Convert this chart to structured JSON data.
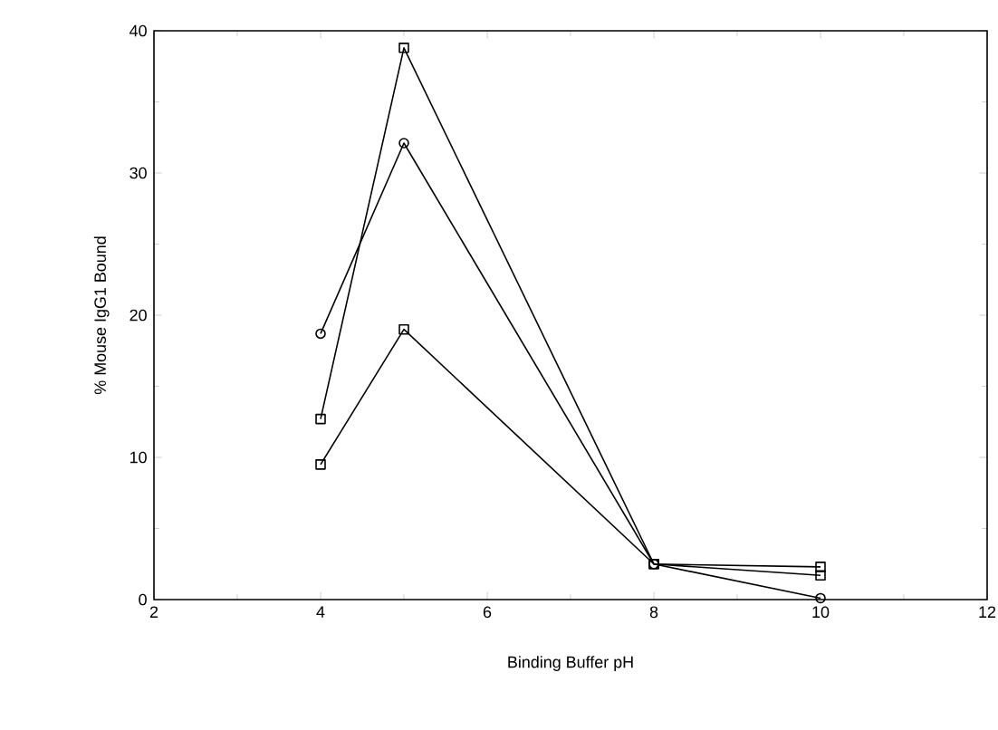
{
  "chart_data": {
    "type": "line",
    "xlabel": "Binding Buffer pH",
    "ylabel": "% Mouse IgG1 Bound",
    "xlim": [
      2,
      12
    ],
    "xticks": [
      2,
      4,
      6,
      8,
      10,
      12
    ],
    "ylim": [
      0,
      40
    ],
    "yticks": [
      0,
      10,
      20,
      30,
      40
    ],
    "line_style": "solid",
    "series": [
      {
        "color": "#000000",
        "marker": "square",
        "x": [
          4,
          5,
          8,
          10
        ],
        "values": [
          12.7,
          38.8,
          2.5,
          1.7
        ]
      },
      {
        "color": "#000000",
        "marker": "circle",
        "x": [
          4,
          5,
          8,
          10
        ],
        "values": [
          18.7,
          32.1,
          2.5,
          0.1
        ]
      },
      {
        "color": "#000000",
        "marker": "square",
        "x": [
          4,
          5,
          8,
          10
        ],
        "values": [
          9.5,
          19.0,
          2.5,
          2.3
        ]
      }
    ]
  }
}
